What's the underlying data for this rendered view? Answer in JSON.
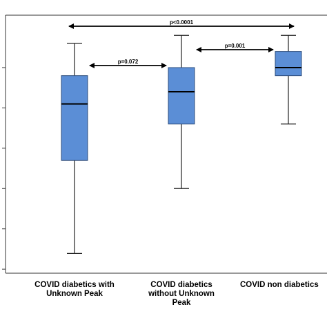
{
  "chart_data": {
    "type": "box",
    "categories": [
      "COVID diabetics with\nUnknown Peak",
      "COVID diabetics\nwithout Unknown\nPeak",
      "COVID non diabetics"
    ],
    "boxes": [
      {
        "whisker_low": 0.39,
        "q1": 2.7,
        "median": 4.1,
        "q3": 4.8,
        "whisker_high": 5.6
      },
      {
        "whisker_low": 2.0,
        "q1": 3.6,
        "median": 4.4,
        "q3": 5.0,
        "whisker_high": 5.8
      },
      {
        "whisker_low": 3.6,
        "q1": 4.8,
        "median": 5.0,
        "q3": 5.4,
        "whisker_high": 5.8
      }
    ],
    "comparisons": [
      {
        "from": 0,
        "to": 1,
        "label": "p=0.072"
      },
      {
        "from": 1,
        "to": 2,
        "label": "p=0.001"
      },
      {
        "from": 0,
        "to": 2,
        "label": "p<0.0001"
      }
    ],
    "y_ticks": [
      0,
      1,
      2,
      3,
      4,
      5
    ],
    "ylim": [
      -0.1,
      6.3
    ],
    "colors": {
      "box_fill": "#5b8ed6",
      "box_stroke": "#2f4f7f",
      "median": "#000000"
    }
  }
}
